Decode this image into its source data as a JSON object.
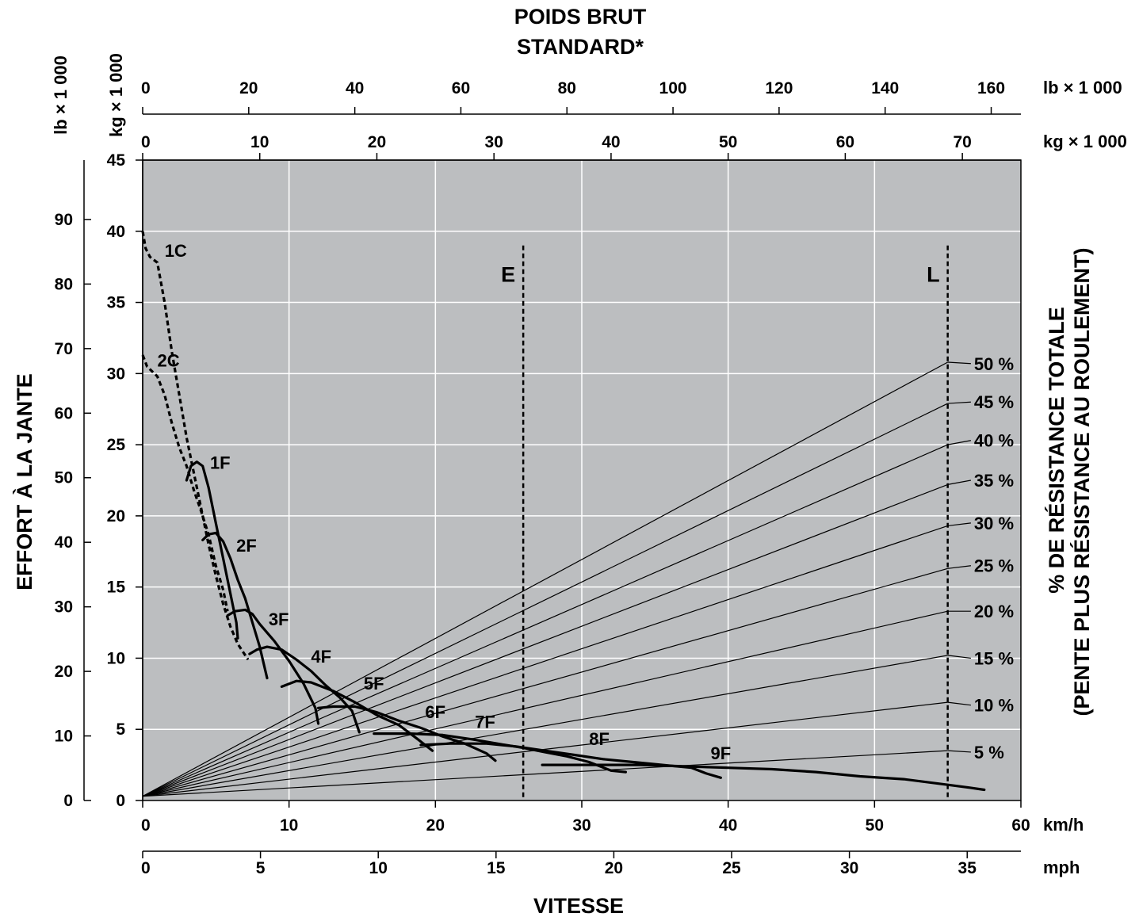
{
  "chart_data": {
    "type": "line",
    "title_lines": [
      "POIDS BRUT",
      "STANDARD*"
    ],
    "xlabel": "VITESSE",
    "ylabel": "EFFORT À LA JANTE",
    "right_label_lines": [
      "% DE RÉSISTANCE TOTALE",
      "(PENTE PLUS RÉSISTANCE AU ROULEMENT)"
    ],
    "colors": {
      "plot_bg": "#bcbec0",
      "grid": "#ffffff",
      "ink": "#000000"
    },
    "axes": {
      "kmh": {
        "unit": "km/h",
        "range": [
          0,
          60
        ],
        "ticks": [
          0,
          10,
          20,
          30,
          40,
          50,
          60
        ]
      },
      "mph": {
        "unit": "mph",
        "range": [
          0,
          37.28
        ],
        "ticks": [
          0,
          5,
          10,
          15,
          20,
          25,
          30,
          35
        ]
      },
      "force_kg": {
        "unit": "kg × 1 000",
        "range": [
          0,
          45
        ],
        "ticks": [
          0,
          5,
          10,
          15,
          20,
          25,
          30,
          35,
          40,
          45
        ]
      },
      "force_lb": {
        "unit": "lb × 1 000",
        "range": [
          0,
          99.2
        ],
        "ticks": [
          0,
          10,
          20,
          30,
          40,
          50,
          60,
          70,
          80,
          90
        ]
      },
      "weight_lb": {
        "unit": "lb × 1 000",
        "range": [
          0,
          165.6
        ],
        "ticks": [
          0,
          20,
          40,
          60,
          80,
          100,
          120,
          140,
          160
        ]
      },
      "weight_kg": {
        "unit": "kg × 1 000",
        "range": [
          0,
          75
        ],
        "ticks": [
          0,
          10,
          20,
          30,
          40,
          50,
          60,
          70
        ]
      }
    },
    "grid": true,
    "markers": [
      {
        "label": "E",
        "x": 26,
        "y_top": 39
      },
      {
        "label": "L",
        "x": 55,
        "y_top": 39
      }
    ],
    "resistance_lines": {
      "origin": [
        0,
        0.3
      ],
      "x_end": 55,
      "label_x": 56.8,
      "series": [
        {
          "label": "50 %",
          "y_end": 30.8,
          "label_y": 30.7
        },
        {
          "label": "45 %",
          "y_end": 27.9,
          "label_y": 28.0
        },
        {
          "label": "40 %",
          "y_end": 25.0,
          "label_y": 25.3
        },
        {
          "label": "35 %",
          "y_end": 22.2,
          "label_y": 22.5
        },
        {
          "label": "30 %",
          "y_end": 19.3,
          "label_y": 19.5
        },
        {
          "label": "25 %",
          "y_end": 16.3,
          "label_y": 16.5
        },
        {
          "label": "20 %",
          "y_end": 13.3,
          "label_y": 13.3
        },
        {
          "label": "15 %",
          "y_end": 10.2,
          "label_y": 10.0
        },
        {
          "label": "10 %",
          "y_end": 6.9,
          "label_y": 6.7
        },
        {
          "label": "5 %",
          "y_end": 3.5,
          "label_y": 3.4
        }
      ]
    },
    "series": [
      {
        "name": "1C",
        "style": "dashed",
        "label_pos": [
          1.5,
          38.2
        ],
        "points": [
          [
            0,
            40
          ],
          [
            0.2,
            38.8
          ],
          [
            0.5,
            38.2
          ],
          [
            1,
            37.8
          ],
          [
            1.5,
            35
          ],
          [
            2,
            31.5
          ],
          [
            2.5,
            28.5
          ],
          [
            3,
            25.5
          ],
          [
            3.5,
            23
          ],
          [
            4,
            20.5
          ],
          [
            4.5,
            18
          ],
          [
            5,
            15.8
          ],
          [
            5.5,
            13.8
          ],
          [
            6,
            12.2
          ],
          [
            6.5,
            11
          ],
          [
            7.2,
            9.9
          ]
        ]
      },
      {
        "name": "2C",
        "style": "dashed",
        "label_pos": [
          1.0,
          30.5
        ],
        "points": [
          [
            0,
            31.3
          ],
          [
            0.3,
            30.5
          ],
          [
            1,
            29.8
          ],
          [
            1.5,
            28.5
          ],
          [
            2,
            26.5
          ],
          [
            2.5,
            24.8
          ],
          [
            3,
            23.5
          ],
          [
            3.5,
            21.8
          ],
          [
            4,
            20.3
          ],
          [
            4.5,
            18.7
          ],
          [
            5,
            16.5
          ],
          [
            5.5,
            14.8
          ],
          [
            5.8,
            13.3
          ]
        ]
      },
      {
        "name": "1F",
        "style": "solid",
        "label_pos": [
          4.6,
          23.3
        ],
        "points": [
          [
            3.0,
            22.5
          ],
          [
            3.3,
            23.5
          ],
          [
            3.7,
            23.8
          ],
          [
            4.1,
            23.5
          ],
          [
            4.5,
            22
          ],
          [
            5,
            19.5
          ],
          [
            5.5,
            17
          ],
          [
            6,
            14.5
          ],
          [
            6.4,
            12.5
          ],
          [
            6.5,
            11.4
          ]
        ]
      },
      {
        "name": "2F",
        "style": "solid",
        "label_pos": [
          6.4,
          17.5
        ],
        "points": [
          [
            4.1,
            18.3
          ],
          [
            4.5,
            18.7
          ],
          [
            5,
            18.8
          ],
          [
            5.5,
            18.2
          ],
          [
            6,
            17
          ],
          [
            6.5,
            15.5
          ],
          [
            7,
            14.2
          ],
          [
            7.5,
            12.5
          ],
          [
            8,
            10.8
          ],
          [
            8.5,
            8.6
          ]
        ]
      },
      {
        "name": "3F",
        "style": "solid",
        "label_pos": [
          8.6,
          12.3
        ],
        "points": [
          [
            5.8,
            13.0
          ],
          [
            6.3,
            13.3
          ],
          [
            7,
            13.4
          ],
          [
            7.5,
            13.1
          ],
          [
            8,
            12.4
          ],
          [
            9,
            11.2
          ],
          [
            10,
            9.8
          ],
          [
            11,
            8.2
          ],
          [
            11.8,
            6.5
          ],
          [
            12,
            5.4
          ]
        ]
      },
      {
        "name": "4F",
        "style": "solid",
        "label_pos": [
          11.5,
          9.7
        ],
        "points": [
          [
            7.3,
            10.3
          ],
          [
            7.8,
            10.6
          ],
          [
            8.5,
            10.8
          ],
          [
            9.5,
            10.6
          ],
          [
            10.5,
            9.9
          ],
          [
            11.5,
            9.1
          ],
          [
            12.5,
            8.1
          ],
          [
            13.5,
            7.2
          ],
          [
            14.3,
            6.3
          ],
          [
            14.8,
            4.8
          ]
        ]
      },
      {
        "name": "5F",
        "style": "solid",
        "label_pos": [
          15.1,
          7.8
        ],
        "points": [
          [
            9.5,
            8.0
          ],
          [
            10.5,
            8.4
          ],
          [
            11.5,
            8.3
          ],
          [
            13,
            7.7
          ],
          [
            14.5,
            6.9
          ],
          [
            16,
            6.0
          ],
          [
            17.5,
            5.3
          ],
          [
            18.8,
            4.3
          ],
          [
            19.8,
            3.5
          ]
        ]
      },
      {
        "name": "6F",
        "style": "solid",
        "label_pos": [
          19.3,
          5.8
        ],
        "points": [
          [
            12.0,
            6.5
          ],
          [
            13,
            6.6
          ],
          [
            14.5,
            6.6
          ],
          [
            16,
            6.2
          ],
          [
            17.5,
            5.6
          ],
          [
            19,
            5.1
          ],
          [
            20.5,
            4.5
          ],
          [
            22,
            4.0
          ],
          [
            23.5,
            3.3
          ],
          [
            24.1,
            2.8
          ]
        ]
      },
      {
        "name": "7F",
        "style": "solid",
        "label_pos": [
          22.7,
          5.1
        ],
        "points": [
          [
            15.8,
            4.7
          ],
          [
            18.3,
            4.7
          ],
          [
            20.5,
            4.6
          ],
          [
            22.5,
            4.3
          ],
          [
            24.5,
            3.95
          ],
          [
            26,
            3.7
          ],
          [
            27.5,
            3.4
          ],
          [
            29,
            3.1
          ],
          [
            30.5,
            2.7
          ],
          [
            32,
            2.1
          ],
          [
            33,
            2.0
          ]
        ]
      },
      {
        "name": "8F",
        "style": "solid",
        "label_pos": [
          30.5,
          3.9
        ],
        "points": [
          [
            19.0,
            3.9
          ],
          [
            21,
            4.0
          ],
          [
            23.5,
            4.0
          ],
          [
            25.5,
            3.8
          ],
          [
            27.5,
            3.5
          ],
          [
            29.5,
            3.2
          ],
          [
            31.5,
            2.9
          ],
          [
            33.5,
            2.7
          ],
          [
            35.5,
            2.5
          ],
          [
            37.5,
            2.3
          ],
          [
            38.5,
            1.9
          ],
          [
            39.5,
            1.6
          ]
        ]
      },
      {
        "name": "9F",
        "style": "solid",
        "label_pos": [
          38.8,
          2.9
        ],
        "points": [
          [
            27.3,
            2.5
          ],
          [
            31,
            2.5
          ],
          [
            34,
            2.5
          ],
          [
            37,
            2.4
          ],
          [
            40,
            2.3
          ],
          [
            43,
            2.2
          ],
          [
            46,
            2.0
          ],
          [
            49,
            1.7
          ],
          [
            52,
            1.5
          ],
          [
            55,
            1.1
          ],
          [
            56.5,
            0.9
          ],
          [
            57.5,
            0.75
          ]
        ]
      }
    ]
  }
}
